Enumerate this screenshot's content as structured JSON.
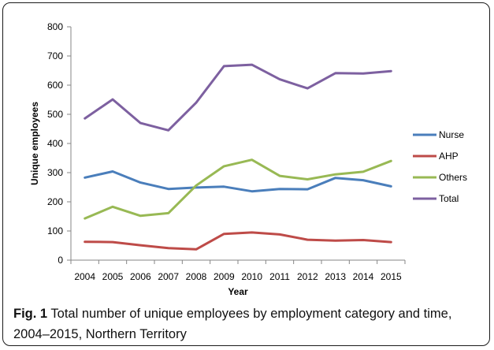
{
  "chart_data": {
    "type": "line",
    "x": [
      "2004",
      "2005",
      "2006",
      "2007",
      "2008",
      "2009",
      "2010",
      "2011",
      "2012",
      "2013",
      "2014",
      "2015"
    ],
    "xlabel": "Year",
    "ylabel": "Unique employees",
    "ylim": [
      0,
      800
    ],
    "yticks": [
      0,
      100,
      200,
      300,
      400,
      500,
      600,
      700,
      800
    ],
    "grid": false,
    "legend_position": "right",
    "series": [
      {
        "name": "Nurse",
        "color": "#4a7ebb",
        "values": [
          283,
          304,
          266,
          244,
          249,
          252,
          236,
          244,
          243,
          282,
          274,
          253
        ]
      },
      {
        "name": "AHP",
        "color": "#be4b48",
        "values": [
          63,
          62,
          51,
          41,
          37,
          90,
          95,
          88,
          70,
          67,
          69,
          62
        ]
      },
      {
        "name": "Others",
        "color": "#98b954",
        "values": [
          143,
          183,
          152,
          161,
          256,
          322,
          344,
          289,
          277,
          294,
          303,
          340
        ]
      },
      {
        "name": "Total",
        "color": "#7d60a0",
        "values": [
          486,
          551,
          470,
          445,
          540,
          665,
          670,
          620,
          589,
          641,
          640,
          648
        ]
      }
    ]
  },
  "caption": {
    "label": "Fig. 1",
    "text": "Total number of unique employees by employment category and time, 2004–2015, Northern Territory"
  }
}
